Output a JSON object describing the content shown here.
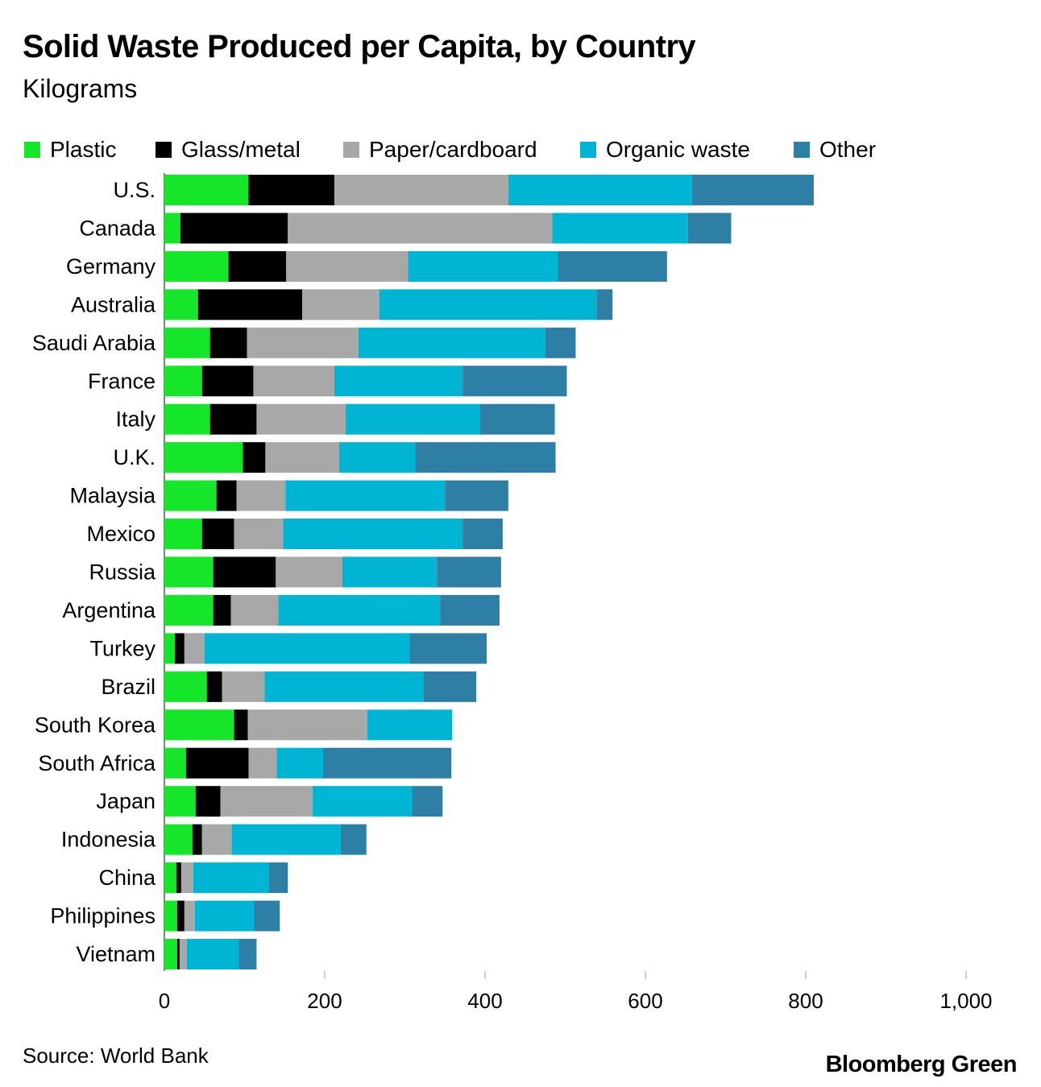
{
  "header": {
    "title": "Solid Waste Produced per Capita, by Country",
    "subtitle": "Kilograms"
  },
  "footer": {
    "source": "Source: World Bank",
    "brand": "Bloomberg Green"
  },
  "colors": {
    "plastic": "#16e629",
    "glass_metal": "#000000",
    "paper_cardboard": "#a8a8a8",
    "organic_waste": "#00b5d4",
    "other": "#2e7fa6"
  },
  "chart_data": {
    "type": "bar",
    "orientation": "horizontal",
    "stacked": true,
    "title": "Solid Waste Produced per Capita, by Country",
    "subtitle": "Kilograms",
    "xlabel": "",
    "ylabel": "",
    "xlim": [
      0,
      1000
    ],
    "xticks": [
      0,
      200,
      400,
      600,
      800,
      1000
    ],
    "xtick_labels": [
      "0",
      "200",
      "400",
      "600",
      "800",
      "1,000"
    ],
    "legend_position": "top",
    "categories": [
      "U.S.",
      "Canada",
      "Germany",
      "Australia",
      "Saudi Arabia",
      "France",
      "Italy",
      "U.K.",
      "Malaysia",
      "Mexico",
      "Russia",
      "Argentina",
      "Turkey",
      "Brazil",
      "South Korea",
      "South Africa",
      "Japan",
      "Indonesia",
      "China",
      "Philippines",
      "Vietnam"
    ],
    "series": [
      {
        "name": "Plastic",
        "color": "#16e629",
        "values": [
          105,
          20,
          80,
          42,
          57,
          47,
          57,
          98,
          65,
          47,
          61,
          61,
          13,
          53,
          87,
          27,
          39,
          35,
          15,
          16,
          16
        ]
      },
      {
        "name": "Glass/metal",
        "color": "#000000",
        "values": [
          107,
          134,
          72,
          130,
          46,
          64,
          58,
          28,
          25,
          40,
          78,
          22,
          12,
          19,
          17,
          78,
          31,
          12,
          6,
          9,
          3
        ]
      },
      {
        "name": "Paper/cardboard",
        "color": "#a8a8a8",
        "values": [
          217,
          330,
          152,
          96,
          139,
          101,
          111,
          92,
          61,
          61,
          83,
          59,
          25,
          53,
          149,
          35,
          115,
          37,
          15,
          13,
          9
        ]
      },
      {
        "name": "Organic waste",
        "color": "#00b5d4",
        "values": [
          229,
          169,
          187,
          271,
          233,
          160,
          168,
          95,
          199,
          224,
          118,
          202,
          256,
          198,
          106,
          58,
          124,
          136,
          94,
          74,
          65
        ]
      },
      {
        "name": "Other",
        "color": "#2e7fa6",
        "values": [
          152,
          54,
          136,
          20,
          38,
          130,
          93,
          175,
          79,
          50,
          80,
          74,
          96,
          66,
          0,
          160,
          38,
          32,
          24,
          32,
          22
        ]
      }
    ]
  }
}
